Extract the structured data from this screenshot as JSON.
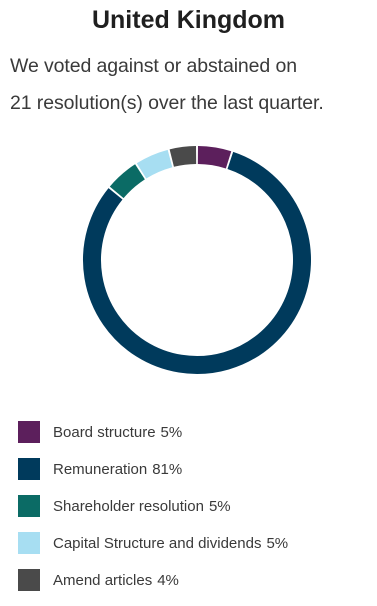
{
  "header": {
    "title": "United Kingdom",
    "subtitle_line1": "We voted against or abstained on",
    "subtitle_line2": "21 resolution(s) over the last quarter."
  },
  "chart_data": {
    "type": "pie",
    "title": "United Kingdom",
    "legend_position": "bottom",
    "unit": "%",
    "categories": [
      "Board structure",
      "Remuneration",
      "Shareholder resolution",
      "Capital Structure and dividends",
      "Amend articles"
    ],
    "values": [
      5,
      81,
      5,
      5,
      4
    ],
    "colors": [
      "#5c1f5c",
      "#003a5c",
      "#0b6b65",
      "#a7def2",
      "#4a4a4a"
    ]
  },
  "legend": [
    {
      "label": "Board structure",
      "value": "5%"
    },
    {
      "label": "Remuneration",
      "value": "81%"
    },
    {
      "label": "Shareholder resolution",
      "value": "5%"
    },
    {
      "label": "Capital Structure and dividends",
      "value": "5%"
    },
    {
      "label": "Amend articles",
      "value": "4%"
    }
  ]
}
